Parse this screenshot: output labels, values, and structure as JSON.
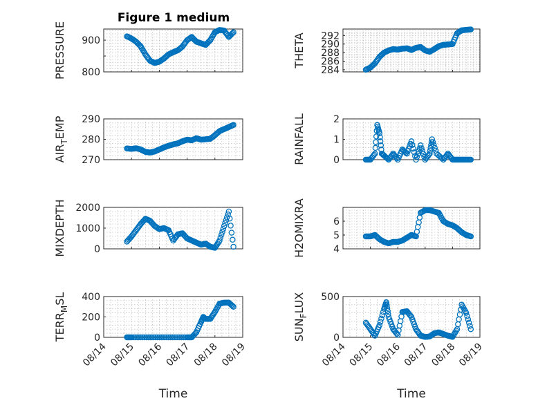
{
  "figure": {
    "title": "Figure 1 medium"
  },
  "chart_data": [
    {
      "type": "scatter",
      "ylabel": "PRESSURE",
      "ylabel_sub": "",
      "ylabel_tail": "",
      "ylim": [
        800,
        935
      ],
      "yticks": [
        800,
        850,
        900
      ],
      "yticklabels": [
        "800",
        "",
        "900"
      ],
      "xlim": [
        "08/14",
        "08/19"
      ],
      "show_xticks": false,
      "xlabel": "",
      "x": [
        "08/14 20:00",
        "08/15 00:00",
        "08/15 04:00",
        "08/15 08:00",
        "08/15 12:00",
        "08/15 16:00",
        "08/15 20:00",
        "08/16 00:00",
        "08/16 04:00",
        "08/16 08:00",
        "08/16 12:00",
        "08/16 16:00",
        "08/16 20:00",
        "08/17 00:00",
        "08/17 04:00",
        "08/17 08:00",
        "08/17 12:00",
        "08/17 16:00",
        "08/17 20:00",
        "08/18 00:00",
        "08/18 04:00",
        "08/18 08:00",
        "08/18 12:00",
        "08/18 16:00"
      ],
      "y": [
        912,
        905,
        895,
        880,
        855,
        835,
        828,
        832,
        842,
        855,
        862,
        868,
        880,
        900,
        910,
        895,
        890,
        885,
        900,
        925,
        932,
        930,
        910,
        925
      ]
    },
    {
      "type": "scatter",
      "ylabel": "THETA",
      "ylabel_sub": "",
      "ylabel_tail": "",
      "ylim": [
        283.5,
        293.5
      ],
      "yticks": [
        284,
        286,
        288,
        290,
        292
      ],
      "yticklabels": [
        "284",
        "286",
        "288",
        "290",
        "292"
      ],
      "xlim": [
        "08/14",
        "08/19"
      ],
      "show_xticks": false,
      "xlabel": "",
      "x": [
        "08/14 20:00",
        "08/15 00:00",
        "08/15 04:00",
        "08/15 08:00",
        "08/15 12:00",
        "08/15 16:00",
        "08/15 20:00",
        "08/16 00:00",
        "08/16 04:00",
        "08/16 08:00",
        "08/16 12:00",
        "08/16 16:00",
        "08/16 20:00",
        "08/17 00:00",
        "08/17 04:00",
        "08/17 08:00",
        "08/17 12:00",
        "08/17 16:00",
        "08/17 20:00",
        "08/18 00:00",
        "08/18 04:00",
        "08/18 08:00",
        "08/18 12:00",
        "08/18 16:00"
      ],
      "y": [
        284,
        284.5,
        285.5,
        287,
        288,
        288.5,
        288.8,
        288.7,
        288.9,
        289,
        288.6,
        289.1,
        289.3,
        288.5,
        288.2,
        288.8,
        289.5,
        289.8,
        289.9,
        290,
        292.5,
        293.2,
        293.3,
        293.4
      ]
    },
    {
      "type": "scatter",
      "ylabel": "AIR",
      "ylabel_sub": "T",
      "ylabel_tail": "EMP",
      "ylim": [
        270,
        290
      ],
      "yticks": [
        270,
        280,
        290
      ],
      "yticklabels": [
        "270",
        "280",
        "290"
      ],
      "xlim": [
        "08/14",
        "08/19"
      ],
      "show_xticks": false,
      "xlabel": "",
      "x": [
        "08/14 20:00",
        "08/15 00:00",
        "08/15 04:00",
        "08/15 08:00",
        "08/15 12:00",
        "08/15 16:00",
        "08/15 20:00",
        "08/16 00:00",
        "08/16 04:00",
        "08/16 08:00",
        "08/16 12:00",
        "08/16 16:00",
        "08/16 20:00",
        "08/17 00:00",
        "08/17 04:00",
        "08/17 08:00",
        "08/17 12:00",
        "08/17 16:00",
        "08/17 20:00",
        "08/18 00:00",
        "08/18 04:00",
        "08/18 08:00",
        "08/18 12:00",
        "08/18 16:00"
      ],
      "y": [
        275.5,
        275.3,
        275.6,
        275,
        273.8,
        273.5,
        274,
        275,
        276,
        276.8,
        277.5,
        278,
        279,
        279.8,
        279.5,
        280.5,
        279.8,
        280,
        280.2,
        282,
        284,
        285,
        286,
        287
      ]
    },
    {
      "type": "scatter",
      "ylabel": "RAINFALL",
      "ylabel_sub": "",
      "ylabel_tail": "",
      "ylim": [
        0,
        2
      ],
      "yticks": [
        0,
        1,
        2
      ],
      "yticklabels": [
        "0",
        "1",
        "2"
      ],
      "xlim": [
        "08/14",
        "08/19"
      ],
      "show_xticks": false,
      "xlabel": "",
      "x": [
        "08/14 20:00",
        "08/15 00:00",
        "08/15 04:00",
        "08/15 06:00",
        "08/15 08:00",
        "08/15 10:00",
        "08/15 12:00",
        "08/15 16:00",
        "08/15 20:00",
        "08/16 00:00",
        "08/16 04:00",
        "08/16 08:00",
        "08/16 12:00",
        "08/16 16:00",
        "08/16 20:00",
        "08/17 00:00",
        "08/17 04:00",
        "08/17 06:00",
        "08/17 10:00",
        "08/17 16:00",
        "08/17 20:00",
        "08/18 00:00",
        "08/18 04:00",
        "08/18 08:00",
        "08/18 12:00",
        "08/18 16:00"
      ],
      "y": [
        0,
        0,
        0.3,
        1.7,
        1.3,
        0.3,
        0.2,
        0,
        0.3,
        0,
        0.5,
        0.3,
        0.9,
        0,
        0.7,
        0,
        0.3,
        1.0,
        0.3,
        0,
        0.3,
        0,
        0,
        0,
        0,
        0
      ]
    },
    {
      "type": "scatter",
      "ylabel": "MIXDEPTH",
      "ylabel_sub": "",
      "ylabel_tail": "",
      "ylim": [
        0,
        2000
      ],
      "yticks": [
        0,
        1000,
        2000
      ],
      "yticklabels": [
        "0",
        "1000",
        "2000"
      ],
      "xlim": [
        "08/14",
        "08/19"
      ],
      "show_xticks": false,
      "xlabel": "",
      "x": [
        "08/14 20:00",
        "08/15 00:00",
        "08/15 04:00",
        "08/15 08:00",
        "08/15 12:00",
        "08/15 16:00",
        "08/15 20:00",
        "08/16 00:00",
        "08/16 04:00",
        "08/16 08:00",
        "08/16 12:00",
        "08/16 16:00",
        "08/16 20:00",
        "08/17 00:00",
        "08/17 04:00",
        "08/17 08:00",
        "08/17 12:00",
        "08/17 16:00",
        "08/17 20:00",
        "08/18 00:00",
        "08/18 04:00",
        "08/18 08:00",
        "08/18 12:00",
        "08/18 16:00"
      ],
      "y": [
        350,
        600,
        900,
        1200,
        1450,
        1350,
        1100,
        950,
        1000,
        900,
        400,
        700,
        750,
        500,
        400,
        300,
        200,
        250,
        100,
        50,
        400,
        1100,
        1800,
        100
      ]
    },
    {
      "type": "scatter",
      "ylabel": "H2OMIXRA",
      "ylabel_sub": "",
      "ylabel_tail": "",
      "ylim": [
        4,
        7
      ],
      "yticks": [
        4,
        5,
        6
      ],
      "yticklabels": [
        "4",
        "5",
        "6"
      ],
      "xlim": [
        "08/14",
        "08/19"
      ],
      "show_xticks": false,
      "xlabel": "",
      "x": [
        "08/14 20:00",
        "08/15 00:00",
        "08/15 04:00",
        "08/15 08:00",
        "08/15 12:00",
        "08/15 16:00",
        "08/15 20:00",
        "08/16 00:00",
        "08/16 04:00",
        "08/16 08:00",
        "08/16 12:00",
        "08/16 16:00",
        "08/16 20:00",
        "08/17 00:00",
        "08/17 04:00",
        "08/17 08:00",
        "08/17 12:00",
        "08/17 16:00",
        "08/17 20:00",
        "08/18 00:00",
        "08/18 04:00",
        "08/18 08:00",
        "08/18 12:00",
        "08/18 16:00"
      ],
      "y": [
        4.9,
        4.9,
        5.0,
        4.7,
        4.5,
        4.4,
        4.5,
        4.5,
        4.6,
        4.8,
        5.0,
        4.9,
        6.6,
        6.8,
        6.8,
        6.7,
        6.6,
        6.0,
        5.8,
        5.7,
        5.5,
        5.2,
        5.0,
        4.9
      ]
    },
    {
      "type": "scatter",
      "ylabel": "TERR",
      "ylabel_sub": "M",
      "ylabel_tail": "SL",
      "ylim": [
        0,
        400
      ],
      "yticks": [
        0,
        200,
        400
      ],
      "yticklabels": [
        "0",
        "200",
        "400"
      ],
      "xlim": [
        "08/14",
        "08/19"
      ],
      "show_xticks": true,
      "xlabel": "Time",
      "xticklabels": [
        "08/14",
        "08/15",
        "08/16",
        "08/17",
        "08/18",
        "08/19"
      ],
      "x": [
        "08/14 20:00",
        "08/15 00:00",
        "08/15 08:00",
        "08/15 16:00",
        "08/16 00:00",
        "08/16 08:00",
        "08/16 16:00",
        "08/17 00:00",
        "08/17 04:00",
        "08/17 08:00",
        "08/17 12:00",
        "08/17 14:00",
        "08/17 16:00",
        "08/17 20:00",
        "08/18 00:00",
        "08/18 04:00",
        "08/18 08:00",
        "08/18 12:00",
        "08/18 16:00"
      ],
      "y": [
        0,
        0,
        0,
        0,
        0,
        0,
        0,
        0,
        0,
        50,
        150,
        200,
        180,
        180,
        250,
        330,
        340,
        340,
        300
      ]
    },
    {
      "type": "scatter",
      "ylabel": "SUN",
      "ylabel_sub": "F",
      "ylabel_tail": "LUX",
      "ylim": [
        0,
        500
      ],
      "yticks": [
        0,
        500
      ],
      "yticklabels": [
        "0",
        "500"
      ],
      "xlim": [
        "08/14",
        "08/19"
      ],
      "show_xticks": true,
      "xlabel": "Time",
      "xticklabels": [
        "08/14",
        "08/15",
        "08/16",
        "08/17",
        "08/18",
        "08/19"
      ],
      "x": [
        "08/14 20:00",
        "08/15 00:00",
        "08/15 04:00",
        "08/15 08:00",
        "08/15 12:00",
        "08/15 14:00",
        "08/15 16:00",
        "08/15 20:00",
        "08/16 00:00",
        "08/16 04:00",
        "08/16 08:00",
        "08/16 12:00",
        "08/16 16:00",
        "08/16 20:00",
        "08/17 00:00",
        "08/17 04:00",
        "08/17 08:00",
        "08/17 12:00",
        "08/17 16:00",
        "08/17 20:00",
        "08/18 00:00",
        "08/18 04:00",
        "08/18 08:00",
        "08/18 12:00",
        "08/18 16:00"
      ],
      "y": [
        180,
        100,
        20,
        150,
        350,
        430,
        250,
        100,
        30,
        310,
        320,
        250,
        100,
        20,
        5,
        10,
        50,
        60,
        40,
        20,
        5,
        100,
        400,
        300,
        100
      ]
    }
  ]
}
